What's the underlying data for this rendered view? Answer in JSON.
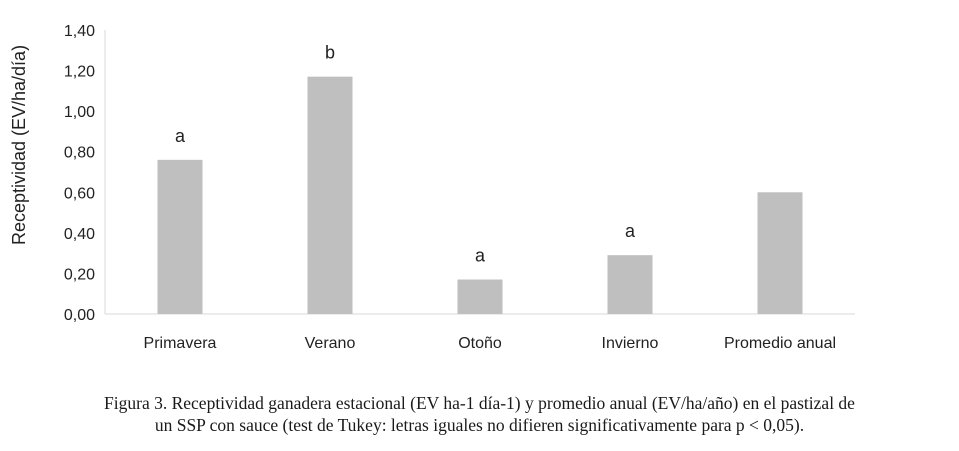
{
  "chart_data": {
    "type": "bar",
    "categories": [
      "Primavera",
      "Verano",
      "Otoño",
      "Invierno",
      "Promedio anual"
    ],
    "values": [
      0.76,
      1.17,
      0.17,
      0.29,
      0.6
    ],
    "labels": [
      "a",
      "b",
      "a",
      "a",
      ""
    ],
    "ylabel": "Receptividad (EV/ha/día)",
    "ylim": [
      0,
      1.4
    ],
    "yticks": [
      "0,00",
      "0,20",
      "0,40",
      "0,60",
      "0,80",
      "1,00",
      "1,20",
      "1,40"
    ],
    "bar_color": "#bfbfbf",
    "axis_color": "#d9d9d9",
    "grid": false
  },
  "caption": {
    "line1": "Figura 3. Receptividad ganadera estacional (EV ha-1 día-1) y promedio anual (EV/ha/año) en el pastizal de",
    "line2": "un SSP con sauce (test de Tukey: letras iguales no difieren significativamente para p < 0,05)."
  }
}
